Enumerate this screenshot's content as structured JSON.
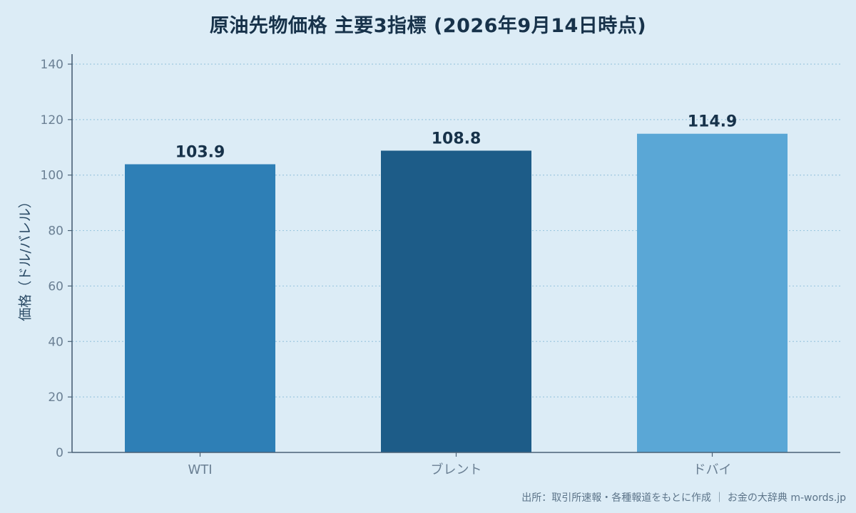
{
  "chart_data": {
    "type": "bar",
    "title": "原油先物価格 主要3指標 (2026年9月14日時点)",
    "ylabel": "価格（ドル/バレル）",
    "xlabel": "",
    "categories": [
      "WTI",
      "ブレント",
      "ドバイ"
    ],
    "values": [
      103.9,
      108.8,
      114.9
    ],
    "value_labels": [
      "103.9",
      "108.8",
      "114.9"
    ],
    "bar_colors": [
      "#2e7fb6",
      "#1d5c88",
      "#5aa7d6"
    ],
    "ylim": [
      0,
      140
    ],
    "yticks": [
      0,
      20,
      40,
      60,
      80,
      100,
      120,
      140
    ],
    "grid": true,
    "legend": "none"
  },
  "colors": {
    "background": "#dcecf6",
    "axis": "#4a6176",
    "grid": "#9ec8e0",
    "tick_text": "#6b8094",
    "value_text": "#17324a"
  },
  "source_note": "出所：取引所速報・各種報道をもとに作成 ｜ お金の大辞典 m-words.jp"
}
